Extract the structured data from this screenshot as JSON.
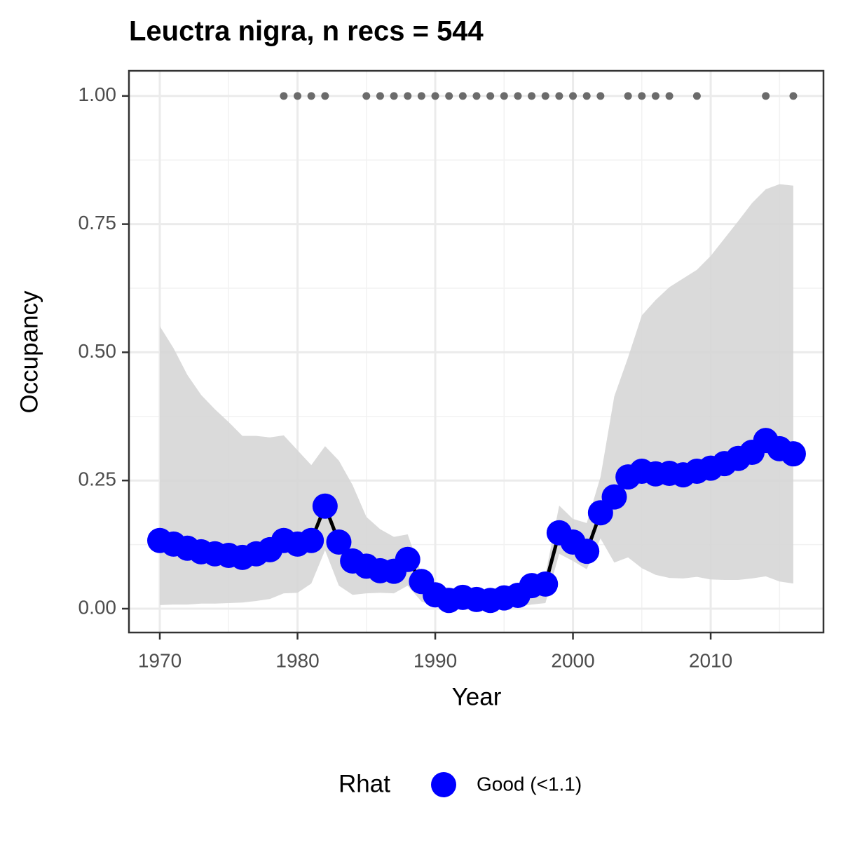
{
  "chart_data": {
    "type": "line",
    "title": "Leuctra nigra, n recs = 544",
    "x_label": "Year",
    "y_label": "Occupancy",
    "x": [
      1970,
      1971,
      1972,
      1973,
      1974,
      1975,
      1976,
      1977,
      1978,
      1979,
      1980,
      1981,
      1982,
      1983,
      1984,
      1985,
      1986,
      1987,
      1988,
      1989,
      1990,
      1991,
      1992,
      1993,
      1994,
      1995,
      1996,
      1997,
      1998,
      1999,
      2000,
      2001,
      2002,
      2003,
      2004,
      2005,
      2006,
      2007,
      2008,
      2009,
      2010,
      2011,
      2012,
      2013,
      2014,
      2015,
      2016
    ],
    "series": [
      {
        "name": "Good (<1.1)",
        "color": "#0000ff",
        "line_color": "#000000",
        "values": [
          0.133,
          0.126,
          0.118,
          0.111,
          0.107,
          0.104,
          0.1,
          0.107,
          0.115,
          0.133,
          0.126,
          0.133,
          0.2,
          0.13,
          0.093,
          0.083,
          0.074,
          0.073,
          0.096,
          0.053,
          0.027,
          0.016,
          0.022,
          0.018,
          0.016,
          0.021,
          0.026,
          0.045,
          0.048,
          0.148,
          0.13,
          0.112,
          0.187,
          0.218,
          0.257,
          0.268,
          0.263,
          0.264,
          0.261,
          0.268,
          0.274,
          0.283,
          0.293,
          0.305,
          0.328,
          0.312,
          0.302
        ]
      }
    ],
    "band": {
      "color": "#d6d6d6",
      "lower": [
        0.007,
        0.008,
        0.008,
        0.01,
        0.01,
        0.011,
        0.012,
        0.015,
        0.019,
        0.03,
        0.031,
        0.049,
        0.114,
        0.045,
        0.027,
        0.03,
        0.031,
        0.03,
        0.045,
        0.014,
        0.005,
        0.003,
        0.003,
        0.003,
        0.003,
        0.004,
        0.004,
        0.008,
        0.011,
        0.107,
        0.093,
        0.077,
        0.137,
        0.09,
        0.1,
        0.079,
        0.066,
        0.06,
        0.059,
        0.062,
        0.057,
        0.056,
        0.056,
        0.059,
        0.063,
        0.053,
        0.049
      ],
      "upper": [
        0.551,
        0.508,
        0.456,
        0.417,
        0.389,
        0.364,
        0.337,
        0.337,
        0.334,
        0.338,
        0.309,
        0.28,
        0.317,
        0.289,
        0.241,
        0.179,
        0.155,
        0.14,
        0.145,
        0.068,
        0.044,
        0.041,
        0.038,
        0.037,
        0.038,
        0.044,
        0.045,
        0.052,
        0.066,
        0.201,
        0.175,
        0.167,
        0.257,
        0.414,
        0.49,
        0.572,
        0.602,
        0.627,
        0.644,
        0.661,
        0.688,
        0.722,
        0.756,
        0.791,
        0.818,
        0.828,
        0.825
      ]
    },
    "records": {
      "color": "#6b6b6b",
      "x": [
        1979,
        1980,
        1981,
        1982,
        1985,
        1986,
        1987,
        1988,
        1989,
        1990,
        1991,
        1992,
        1993,
        1994,
        1995,
        1996,
        1997,
        1998,
        1999,
        2000,
        2001,
        2002,
        2004,
        2005,
        2006,
        2007,
        2009,
        2014,
        2016
      ],
      "values": [
        1,
        1,
        1,
        1,
        1,
        1,
        1,
        1,
        1,
        1,
        1,
        1,
        1,
        1,
        1,
        1,
        1,
        1,
        1,
        1,
        1,
        1,
        1,
        1,
        1,
        1,
        1,
        1,
        1
      ]
    },
    "xlim": [
      1967.76,
      2018.19
    ],
    "ylim": [
      -0.0465,
      1.049
    ],
    "xticks": [
      1970,
      1980,
      1990,
      2000,
      2010
    ],
    "yticks": [
      {
        "value": 0,
        "label": "0.00"
      },
      {
        "value": 0.25,
        "label": "0.25"
      },
      {
        "value": 0.5,
        "label": "0.50"
      },
      {
        "value": 0.75,
        "label": "0.75"
      },
      {
        "value": 1,
        "label": "1.00"
      }
    ],
    "xminor": [
      1975,
      1985,
      1995,
      2005,
      2015
    ],
    "yminor": [
      0.125,
      0.375,
      0.625,
      0.875
    ],
    "grid": true,
    "legend_title": "Rhat",
    "legend_position": "bottom"
  }
}
